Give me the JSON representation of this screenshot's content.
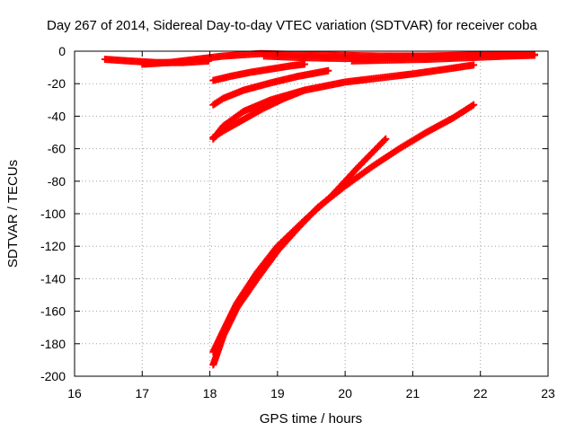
{
  "chart_data": {
    "type": "scatter",
    "title": "Day 267 of 2014, Sidereal Day-to-day VTEC variation (SDTVAR) for receiver coba",
    "xlabel": "GPS time / hours",
    "ylabel": "SDTVAR / TECUs",
    "xlim": [
      16,
      23
    ],
    "ylim": [
      -200,
      0
    ],
    "xticks": [
      16,
      17,
      18,
      19,
      20,
      21,
      22,
      23
    ],
    "yticks": [
      0,
      -20,
      -40,
      -60,
      -80,
      -100,
      -120,
      -140,
      -160,
      -180,
      -200
    ],
    "grid": true,
    "marker": "plus",
    "color": "#ff0000",
    "series": [
      {
        "x": [
          16.45,
          16.8,
          17.2,
          17.6,
          17.98
        ],
        "y": [
          -5,
          -6,
          -7,
          -7,
          -6
        ]
      },
      {
        "x": [
          17.0,
          17.4,
          17.8,
          18.2,
          18.75,
          19.2,
          19.8,
          20.5,
          21.2,
          21.8,
          22.4,
          22.8
        ],
        "y": [
          -8,
          -7,
          -5,
          -3,
          -1.5,
          -2,
          -2.5,
          -3,
          -3,
          -2.5,
          -2,
          -2
        ]
      },
      {
        "x": [
          18.8,
          19.4,
          20.0,
          20.5,
          21.0,
          21.6,
          22.2,
          22.75
        ],
        "y": [
          -3,
          -4,
          -4.5,
          -4,
          -3.5,
          -3,
          -2.5,
          -2
        ]
      },
      {
        "x": [
          20.1,
          20.6,
          21.2,
          21.8,
          22.4,
          22.8
        ],
        "y": [
          -6,
          -5.5,
          -5,
          -4,
          -3,
          -2.5
        ]
      },
      {
        "x": [
          18.05,
          18.3,
          18.6,
          18.9,
          19.2,
          19.4
        ],
        "y": [
          -18,
          -15.5,
          -13,
          -11,
          -9,
          -8
        ]
      },
      {
        "x": [
          18.05,
          18.2,
          18.5,
          18.9,
          19.3,
          19.75
        ],
        "y": [
          -33,
          -29,
          -24,
          -19.5,
          -15.5,
          -12
        ]
      },
      {
        "x": [
          18.05,
          18.2,
          18.5,
          18.9,
          19.4,
          20.0,
          20.5,
          21.0,
          21.5,
          21.9
        ],
        "y": [
          -54,
          -46,
          -37,
          -30,
          -24,
          -19,
          -16.5,
          -14,
          -11,
          -8.5
        ]
      },
      {
        "x": [
          18.05,
          18.2,
          18.5,
          18.8,
          19.1,
          19.4
        ],
        "y": [
          -53,
          -49,
          -42,
          -35,
          -29,
          -24
        ]
      },
      {
        "x": [
          18.05,
          18.2,
          18.4,
          18.7,
          19.0,
          19.4,
          19.8,
          20.2,
          20.6
        ],
        "y": [
          -185,
          -172,
          -155,
          -136,
          -120,
          -104,
          -89,
          -71,
          -54
        ]
      },
      {
        "x": [
          18.05,
          18.2,
          18.4,
          18.7,
          19.0,
          19.3,
          19.6,
          20.0,
          20.4,
          20.8,
          21.2,
          21.6,
          21.9
        ],
        "y": [
          -193,
          -175,
          -158,
          -140,
          -123,
          -109,
          -96,
          -83,
          -71,
          -60,
          -50,
          -41,
          -33
        ]
      }
    ]
  }
}
